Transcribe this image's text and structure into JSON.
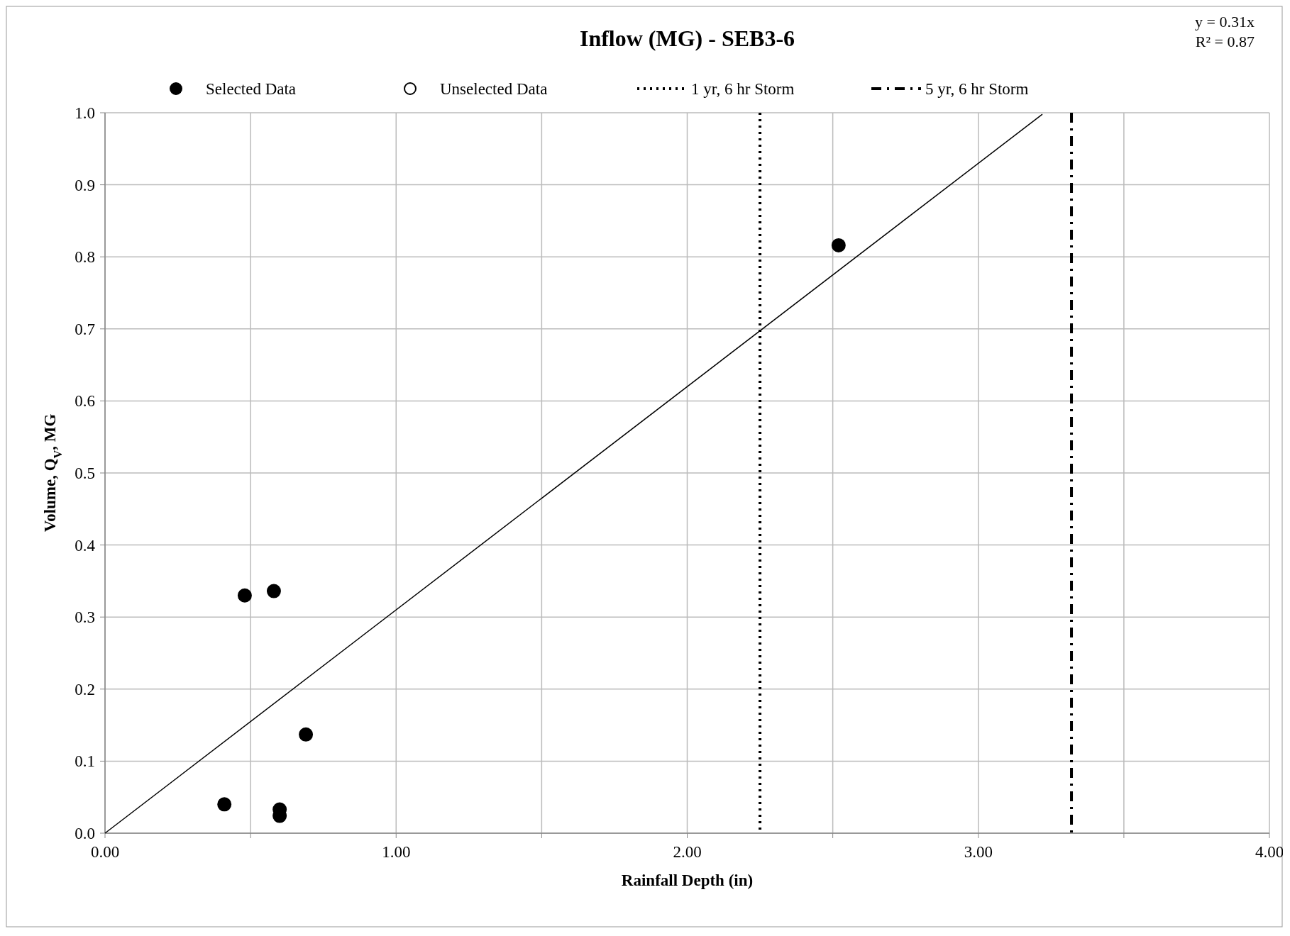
{
  "chart_data": {
    "type": "scatter",
    "title": "Inflow (MG) - SEB3-6",
    "xlabel": "Rainfall Depth (in)",
    "ylabel": "Volume, Q$_{V}$, MG",
    "annotations": [
      "y = 0.31x",
      "R² = 0.87"
    ],
    "xlim": [
      0,
      4
    ],
    "xticks": [
      {
        "value": 0,
        "label": "0.00"
      },
      {
        "value": 0.5,
        "label": null
      },
      {
        "value": 1,
        "label": "1.00"
      },
      {
        "value": 1.5,
        "label": null
      },
      {
        "value": 2,
        "label": "2.00"
      },
      {
        "value": 2.5,
        "label": null
      },
      {
        "value": 3,
        "label": "3.00"
      },
      {
        "value": 3.5,
        "label": null
      },
      {
        "value": 4,
        "label": "4.00"
      }
    ],
    "ylim": [
      0,
      1
    ],
    "yticks": [
      {
        "value": 0,
        "label": "0.0"
      },
      0.1,
      0.2,
      0.3,
      0.4,
      0.5,
      0.6,
      0.7,
      0.8,
      0.9,
      {
        "value": 1,
        "label": "1.0"
      }
    ],
    "grid": true,
    "legend": "top",
    "series": [
      {
        "name": "Selected Data",
        "color": "#000000",
        "marker": "circle",
        "x": [
          0.41,
          0.48,
          0.58,
          0.6,
          0.6,
          0.69,
          2.52
        ],
        "values": [
          0.04,
          0.33,
          0.336,
          0.033,
          0.024,
          0.137,
          0.816
        ]
      },
      {
        "name": "Unselected Data",
        "color": "#ffffff",
        "marker": "circle"
      },
      {
        "type": "line",
        "color": "#000000",
        "marker": "none",
        "x": [
          0,
          3.22
        ],
        "values": [
          0,
          0.998
        ]
      }
    ],
    "ref_lines": [
      {
        "axis": "x",
        "value": 2.25,
        "label": "1 yr, 6 hr Storm",
        "line_style": "dotted",
        "color": "#000000"
      },
      {
        "axis": "x",
        "value": 3.32,
        "label": "5 yr, 6 hr Storm",
        "line_style": "dashed",
        "color": "#000000"
      }
    ]
  }
}
